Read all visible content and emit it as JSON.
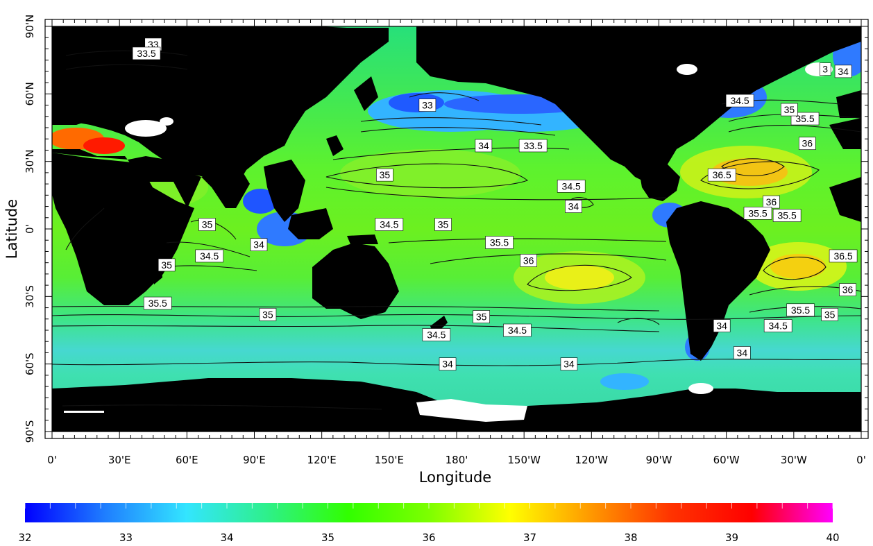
{
  "map": {
    "xlabel": "Longitude",
    "ylabel": "Latitude",
    "x_ticks": [
      "0'",
      "30'E",
      "60'E",
      "90'E",
      "120'E",
      "150'E",
      "180'",
      "150'W",
      "120'W",
      "90'W",
      "60'W",
      "30'W",
      "0'"
    ],
    "y_ticks": [
      "90'N",
      "60'N",
      "30'N",
      "0'",
      "30'S",
      "60'S",
      "90'S"
    ],
    "colorbar": {
      "min": 32,
      "max": 40,
      "ticks": [
        "32",
        "33",
        "34",
        "35",
        "36",
        "37",
        "38",
        "39",
        "40"
      ],
      "colors": [
        "#0000ff",
        "#1f7fff",
        "#33e5ff",
        "#2ef08a",
        "#31ff00",
        "#7dff00",
        "#ffff00",
        "#ff9900",
        "#ff3300",
        "#ff0000",
        "#ff00ff"
      ]
    },
    "contour_labels": [
      {
        "text": "33",
        "lon": 45,
        "lat": 82
      },
      {
        "text": "33.5",
        "lon": 42,
        "lat": 78
      },
      {
        "text": "33",
        "lon": 167,
        "lat": 55
      },
      {
        "text": "34",
        "lon": 192,
        "lat": 37
      },
      {
        "text": "33.5",
        "lon": 214,
        "lat": 37
      },
      {
        "text": "35",
        "lon": 148,
        "lat": 24
      },
      {
        "text": "34.5",
        "lon": 231,
        "lat": 19
      },
      {
        "text": "34",
        "lon": 232,
        "lat": 10
      },
      {
        "text": "35",
        "lon": 69,
        "lat": 2
      },
      {
        "text": "34",
        "lon": 92,
        "lat": -7
      },
      {
        "text": "34.5",
        "lon": 70,
        "lat": -12
      },
      {
        "text": "35",
        "lon": 51,
        "lat": -16
      },
      {
        "text": "35.5",
        "lon": 47,
        "lat": -33
      },
      {
        "text": "35",
        "lon": 96,
        "lat": -38
      },
      {
        "text": "34.5",
        "lon": 150,
        "lat": 2
      },
      {
        "text": "35",
        "lon": 174,
        "lat": 2
      },
      {
        "text": "35.5",
        "lon": 199,
        "lat": -6
      },
      {
        "text": "36",
        "lon": 212,
        "lat": -14
      },
      {
        "text": "35",
        "lon": 191,
        "lat": -39
      },
      {
        "text": "34.5",
        "lon": 171,
        "lat": -47
      },
      {
        "text": "34.5",
        "lon": 207,
        "lat": -45
      },
      {
        "text": "34",
        "lon": 176,
        "lat": -60
      },
      {
        "text": "34",
        "lon": 230,
        "lat": -60
      },
      {
        "text": "36.5",
        "lon": 298,
        "lat": 24
      },
      {
        "text": "36",
        "lon": 336,
        "lat": 38
      },
      {
        "text": "35.5",
        "lon": 335,
        "lat": 49
      },
      {
        "text": "35",
        "lon": 328,
        "lat": 53
      },
      {
        "text": "34.5",
        "lon": 306,
        "lat": 57
      },
      {
        "text": "34",
        "lon": 352,
        "lat": 70
      },
      {
        "text": "3",
        "lon": 344,
        "lat": 71
      },
      {
        "text": "36",
        "lon": 320,
        "lat": 12
      },
      {
        "text": "35.5",
        "lon": 314,
        "lat": 7
      },
      {
        "text": "35.5",
        "lon": 327,
        "lat": 6
      },
      {
        "text": "36.5",
        "lon": 352,
        "lat": -12
      },
      {
        "text": "36",
        "lon": 354,
        "lat": -27
      },
      {
        "text": "35.5",
        "lon": 333,
        "lat": -36
      },
      {
        "text": "35",
        "lon": 346,
        "lat": -38
      },
      {
        "text": "34.5",
        "lon": 323,
        "lat": -43
      },
      {
        "text": "34",
        "lon": 298,
        "lat": -43
      },
      {
        "text": "34",
        "lon": 307,
        "lat": -55
      }
    ]
  }
}
